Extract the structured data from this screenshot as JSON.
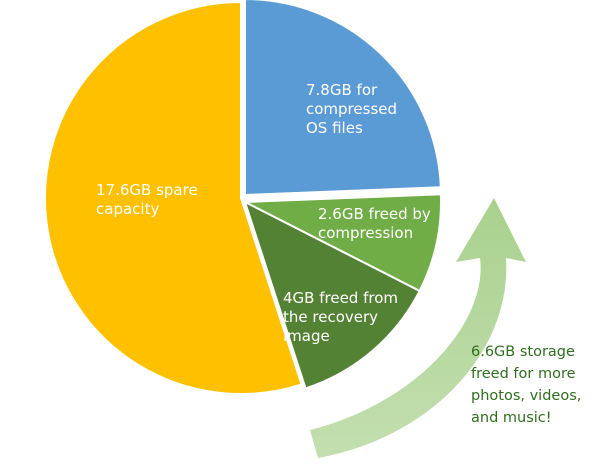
{
  "chart_data": {
    "type": "pie",
    "unit": "GB",
    "slices": [
      {
        "value": 7.8,
        "color": "#5b9bd5",
        "label_lines": [
          "7.8GB for",
          "compressed",
          "OS files"
        ]
      },
      {
        "value": 2.6,
        "color": "#70ad47",
        "label_lines": [
          "2.6GB freed by",
          "compression"
        ]
      },
      {
        "value": 4.0,
        "color": "#548235",
        "label_lines": [
          "4GB freed from",
          "the recovery",
          "image"
        ]
      },
      {
        "value": 17.6,
        "color": "#ffc000",
        "label_lines": [
          "17.6GB spare",
          "capacity"
        ]
      }
    ],
    "callout": {
      "lines": [
        "6.6GB storage",
        "freed for more",
        "photos, videos,",
        "and music!"
      ],
      "arrow_color": "#a9d18e",
      "text_color": "#2f6e1f"
    }
  }
}
